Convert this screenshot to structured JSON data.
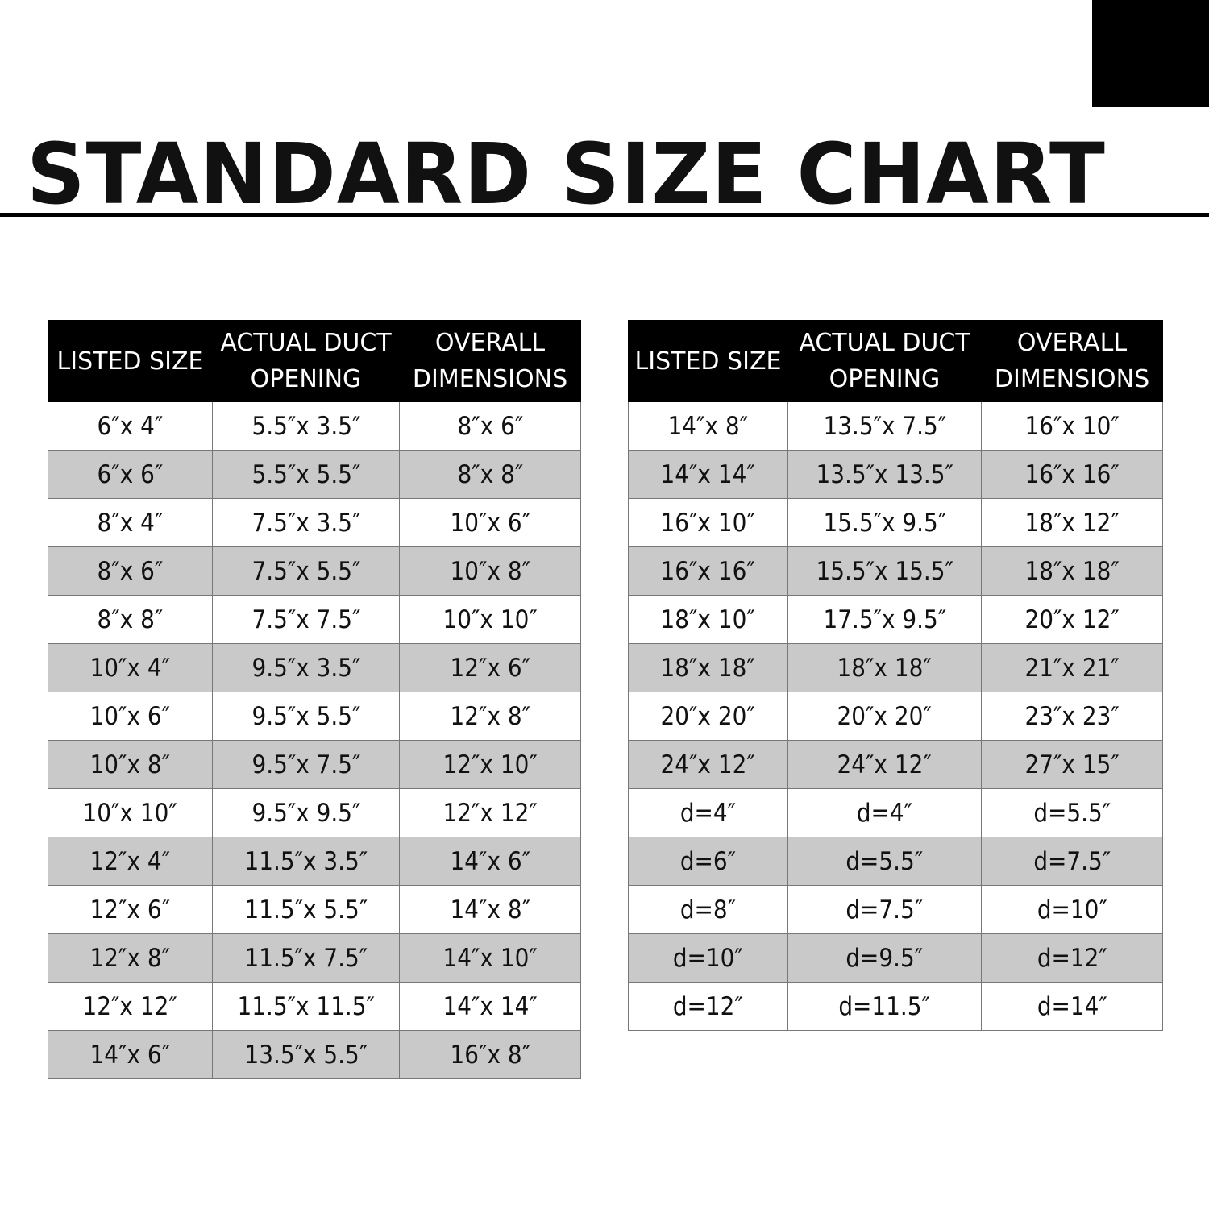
{
  "title": "STANDARD SIZE CHART",
  "headers": [
    "LISTED SIZE",
    "ACTUAL DUCT OPENING",
    "OVERALL DIMENSIONS"
  ],
  "colors": {
    "header_bg": "#000000",
    "alt_row": "#c9c9c9",
    "corner_block": "#000000"
  },
  "left_table": [
    [
      "6″x 4″",
      "5.5″x 3.5″",
      "8″x 6″"
    ],
    [
      "6″x 6″",
      "5.5″x 5.5″",
      "8″x  8″"
    ],
    [
      "8″x 4″",
      "7.5″x 3.5″",
      "10″x 6″"
    ],
    [
      "8″x 6″",
      "7.5″x 5.5″",
      "10″x 8″"
    ],
    [
      "8″x 8″",
      "7.5″x 7.5″",
      "10″x 10″"
    ],
    [
      "10″x 4″",
      "9.5″x 3.5″",
      "12″x 6″"
    ],
    [
      "10″x 6″",
      "9.5″x 5.5″",
      "12″x 8″"
    ],
    [
      "10″x 8″",
      "9.5″x 7.5″",
      "12″x 10″"
    ],
    [
      "10″x 10″",
      "9.5″x 9.5″",
      "12″x 12″"
    ],
    [
      "12″x 4″",
      "11.5″x 3.5″",
      "14″x 6″"
    ],
    [
      "12″x 6″",
      "11.5″x 5.5″",
      "14″x 8″"
    ],
    [
      "12″x 8″",
      "11.5″x 7.5″",
      "14″x 10″"
    ],
    [
      "12″x 12″",
      "11.5″x 11.5″",
      "14″x 14″"
    ],
    [
      "14″x 6″",
      "13.5″x 5.5″",
      "16″x 8″"
    ]
  ],
  "right_table": [
    [
      "14″x 8″",
      "13.5″x 7.5″",
      "16″x 10″"
    ],
    [
      "14″x 14″",
      "13.5″x 13.5″",
      "16″x 16″"
    ],
    [
      "16″x 10″",
      "15.5″x 9.5″",
      "18″x 12″"
    ],
    [
      "16″x 16″",
      "15.5″x 15.5″",
      "18″x 18″"
    ],
    [
      "18″x 10″",
      "17.5″x 9.5″",
      "20″x 12″"
    ],
    [
      "18″x 18″",
      "18″x 18″",
      "21″x 21″"
    ],
    [
      "20″x 20″",
      "20″x 20″",
      "23″x 23″"
    ],
    [
      "24″x 12″",
      "24″x 12″",
      "27″x 15″"
    ],
    [
      "d=4″",
      "d=4″",
      "d=5.5″"
    ],
    [
      "d=6″",
      "d=5.5″",
      "d=7.5″"
    ],
    [
      "d=8″",
      "d=7.5″",
      "d=10″"
    ],
    [
      "d=10″",
      "d=9.5″",
      "d=12″"
    ],
    [
      "d=12″",
      "d=11.5″",
      "d=14″"
    ]
  ]
}
